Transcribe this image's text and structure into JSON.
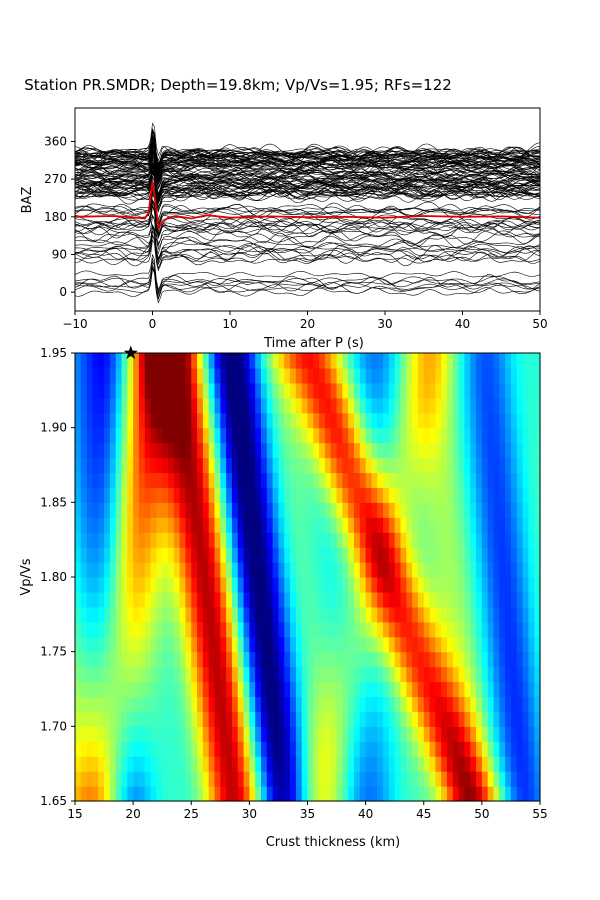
{
  "title": "Station PR.SMDR; Depth=19.8km; Vp/Vs=1.95; RFs=122",
  "chart_data": [
    {
      "type": "line",
      "panel": "receiver-functions",
      "xlabel": "Time after P (s)",
      "ylabel": "BAZ",
      "xlim": [
        -10,
        50
      ],
      "ylim": [
        -45,
        440
      ],
      "xticks": [
        "−10",
        "0",
        "10",
        "20",
        "30",
        "40",
        "50"
      ],
      "xtick_values": [
        -10,
        0,
        10,
        20,
        30,
        40,
        50
      ],
      "yticks": [
        "0",
        "90",
        "180",
        "270",
        "360"
      ],
      "ytick_values": [
        0,
        90,
        180,
        270,
        360
      ],
      "trace_count": 122,
      "trace_color": "#000000",
      "stack_color": "#e00000",
      "stack_baseline": 180,
      "stack": {
        "x": [
          -10,
          -5,
          -2,
          -1,
          -0.5,
          0,
          0.4,
          0.8,
          1.2,
          2,
          3,
          5,
          7,
          10,
          15,
          20,
          25,
          30,
          35,
          40,
          45,
          50
        ],
        "y": [
          180,
          182,
          178,
          176,
          190,
          265,
          210,
          155,
          165,
          178,
          182,
          176,
          184,
          178,
          181,
          179,
          180,
          178,
          182,
          180,
          181,
          178
        ]
      },
      "grid": false
    },
    {
      "type": "heatmap",
      "panel": "h-k-stacking",
      "xlabel": "Crust thickness (km)",
      "ylabel": "Vp/Vs",
      "xlim": [
        15,
        55
      ],
      "ylim": [
        1.65,
        1.95
      ],
      "xticks": [
        "15",
        "20",
        "25",
        "30",
        "35",
        "40",
        "45",
        "50",
        "55"
      ],
      "xtick_values": [
        15,
        20,
        25,
        30,
        35,
        40,
        45,
        50,
        55
      ],
      "yticks": [
        "1.65",
        "1.70",
        "1.75",
        "1.80",
        "1.85",
        "1.90",
        "1.95"
      ],
      "ytick_values": [
        1.65,
        1.7,
        1.75,
        1.8,
        1.85,
        1.9,
        1.95
      ],
      "colormap": "jet",
      "best_fit": {
        "thickness_km": 19.8,
        "vp_vs": 1.95
      },
      "bands": [
        {
          "kind": "max",
          "at_k165": 17.7,
          "at_k195": 21.5,
          "strength": 1.0
        },
        {
          "kind": "min",
          "at_k165": 19.5,
          "at_k195": 17.8,
          "strength": 0.9
        },
        {
          "kind": "max",
          "at_k165": 29.0,
          "at_k195": 23.5,
          "strength": 0.85
        },
        {
          "kind": "min",
          "at_k165": 33.0,
          "at_k195": 28.5,
          "strength": 0.9
        },
        {
          "kind": "max",
          "at_k165": 49.0,
          "at_k195": 35.0,
          "strength": 0.9
        },
        {
          "kind": "min",
          "at_k165": 41.0,
          "at_k195": 40.0,
          "strength": 0.45
        },
        {
          "kind": "max",
          "at_k165": 36.0,
          "at_k195": 45.5,
          "strength": 0.35
        },
        {
          "kind": "min",
          "at_k165": 54.0,
          "at_k195": 51.0,
          "strength": 0.5
        }
      ]
    }
  ]
}
